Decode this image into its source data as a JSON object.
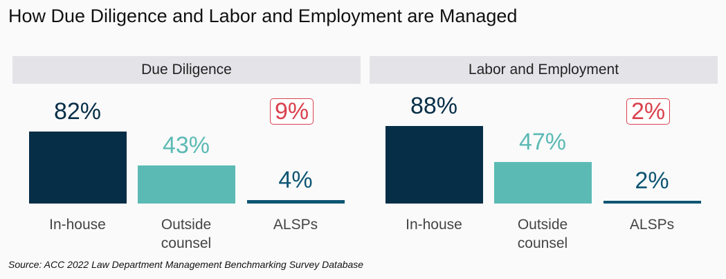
{
  "title": "How Due Diligence and Labor and Employment are Managed",
  "source": "Source: ACC 2022 Law Department Management Benchmarking Survey Database",
  "chart_data": [
    {
      "type": "bar",
      "title": "Due Diligence",
      "categories": [
        "In-house",
        "Outside counsel",
        " ALSPs"
      ],
      "values": [
        82,
        43,
        4
      ],
      "value_labels": [
        "82%",
        "43%",
        "4%"
      ],
      "annotation": "9%",
      "ylim": [
        0,
        100
      ],
      "colors": [
        "#062e47",
        "#5cbab5",
        "#0e5573"
      ]
    },
    {
      "type": "bar",
      "title": "Labor and Employment",
      "categories": [
        "In-house",
        "Outside counsel",
        "ALSPs"
      ],
      "values": [
        88,
        47,
        2
      ],
      "value_labels": [
        "88%",
        "47%",
        "2%"
      ],
      "annotation": "2%",
      "ylim": [
        0,
        100
      ],
      "colors": [
        "#062e47",
        "#5cbab5",
        "#0e5573"
      ]
    }
  ],
  "annotation_color": "#d9414d"
}
